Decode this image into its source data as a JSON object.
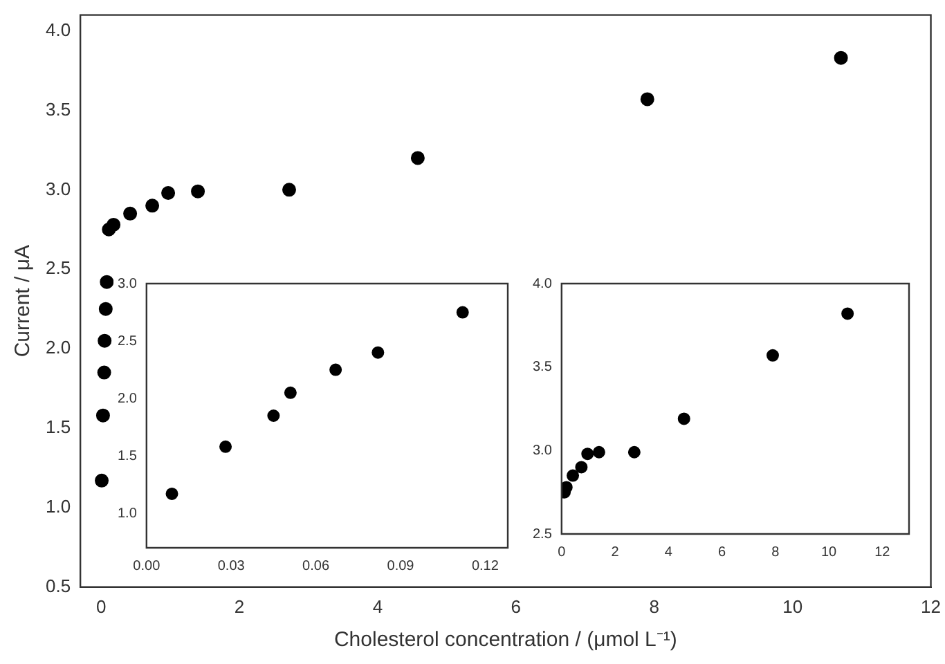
{
  "chart_data": [
    {
      "type": "scatter",
      "xlabel": "Cholesterol concentration / (μmol L⁻¹)",
      "ylabel": "Current / μA",
      "marker": "circle",
      "color": "#000000",
      "x": [
        0.009,
        0.028,
        0.045,
        0.051,
        0.067,
        0.082,
        0.112,
        0.18,
        0.42,
        0.74,
        0.97,
        1.4,
        2.72,
        4.58,
        7.9,
        10.7
      ],
      "values": [
        1.17,
        1.58,
        1.85,
        2.05,
        2.25,
        2.42,
        2.75,
        2.78,
        2.85,
        2.9,
        2.98,
        2.99,
        3.0,
        3.2,
        3.57,
        3.83
      ],
      "xlim": [
        -0.3,
        12
      ],
      "ylim": [
        0.5,
        4.1
      ],
      "xticks": [
        0,
        2,
        4,
        6,
        8,
        10,
        12
      ],
      "yticks": [
        0.5,
        {
          "value": 1,
          "label": "1.0"
        },
        1.5,
        {
          "value": 2,
          "label": "2.0"
        },
        2.5,
        {
          "value": 3,
          "label": "3.0"
        },
        3.5,
        {
          "value": 4,
          "label": "4.0"
        }
      ]
    },
    {
      "type": "scatter",
      "marker": "circle",
      "color": "#000000",
      "x": [
        0.009,
        0.028,
        0.045,
        0.051,
        0.067,
        0.082,
        0.112
      ],
      "values": [
        1.17,
        1.58,
        1.85,
        2.05,
        2.25,
        2.4,
        2.75
      ],
      "xlim": [
        0,
        0.128
      ],
      "ylim": [
        0.7,
        3.0
      ],
      "xticks": [
        {
          "value": 0,
          "label": "0.00"
        },
        0.03,
        0.06,
        0.09,
        0.12
      ],
      "yticks": [
        {
          "value": 1,
          "label": "1.0"
        },
        1.5,
        {
          "value": 2,
          "label": "2.0"
        },
        2.5,
        {
          "value": 3,
          "label": "3.0"
        }
      ]
    },
    {
      "type": "scatter",
      "marker": "circle",
      "color": "#000000",
      "x": [
        0.11,
        0.18,
        0.42,
        0.74,
        0.97,
        1.4,
        2.72,
        4.58,
        7.9,
        10.7
      ],
      "values": [
        2.75,
        2.78,
        2.85,
        2.9,
        2.98,
        2.99,
        2.99,
        3.19,
        3.57,
        3.82
      ],
      "xlim": [
        0,
        13
      ],
      "ylim": [
        2.5,
        4.0
      ],
      "xticks": [
        0,
        2,
        4,
        6,
        8,
        10,
        12
      ],
      "yticks": [
        2.5,
        {
          "value": 3,
          "label": "3.0"
        },
        3.5,
        {
          "value": 4,
          "label": "4.0"
        }
      ]
    }
  ]
}
